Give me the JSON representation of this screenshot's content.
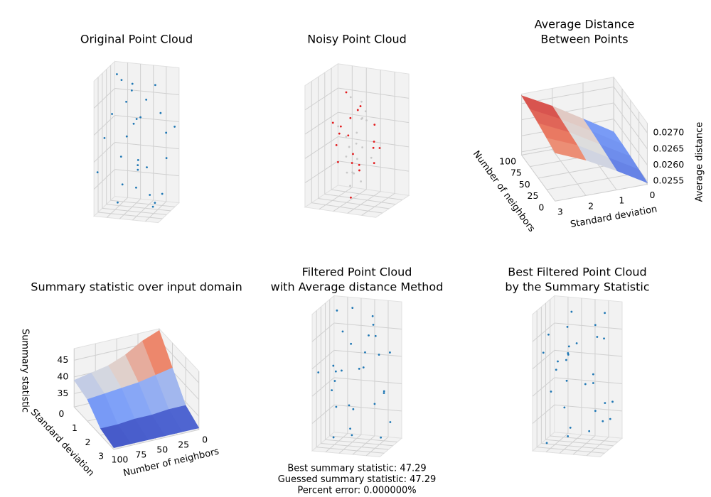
{
  "chart_data": [
    {
      "type": "scatter3d",
      "title": [
        "Original Point Cloud"
      ],
      "xlim": [
        0,
        1
      ],
      "ylim": [
        0,
        1
      ],
      "zlim": [
        0,
        1
      ],
      "series": [
        {
          "color": "#1f77b4",
          "x": [
            0.12,
            0.85,
            0.43,
            0.67,
            0.29,
            0.91,
            0.05,
            0.56,
            0.74,
            0.38,
            0.19,
            0.63,
            0.97,
            0.31,
            0.48,
            0.82,
            0.08,
            0.54,
            0.71,
            0.26,
            0.93,
            0.36,
            0.61,
            0.15,
            0.78,
            0.44,
            0.02,
            0.69,
            0.88,
            0.51
          ],
          "y": [
            0.73,
            0.21,
            0.58,
            0.04,
            0.92,
            0.47,
            0.35,
            0.81,
            0.66,
            0.13,
            0.55,
            0.29,
            0.88,
            0.41,
            0.07,
            0.95,
            0.62,
            0.18,
            0.49,
            0.77,
            0.33,
            0.99,
            0.24,
            0.86,
            0.52,
            0.69,
            0.11,
            0.38,
            0.75,
            0.45
          ],
          "z": [
            0.95,
            0.08,
            0.62,
            0.37,
            0.81,
            0.14,
            0.53,
            0.27,
            0.91,
            0.44,
            0.03,
            0.72,
            0.58,
            0.19,
            0.86,
            0.33,
            0.67,
            0.98,
            0.12,
            0.49,
            0.76,
            0.25,
            0.41,
            0.89,
            0.06,
            0.64,
            0.31,
            0.84,
            0.55,
            0.17
          ]
        }
      ]
    },
    {
      "type": "scatter3d",
      "title": [
        "Noisy Point Cloud"
      ],
      "xlim": [
        0,
        1
      ],
      "ylim": [
        0,
        1
      ],
      "zlim": [
        0,
        1
      ],
      "series": [
        {
          "color": "#c8c8c8",
          "x": [
            0.35,
            0.62,
            0.44,
            0.58,
            0.31,
            0.67,
            0.49,
            0.39,
            0.55,
            0.64,
            0.33,
            0.47,
            0.6,
            0.42,
            0.53,
            0.37,
            0.66,
            0.45,
            0.51,
            0.4
          ],
          "y": [
            0.52,
            0.38,
            0.61,
            0.45,
            0.34,
            0.57,
            0.66,
            0.41,
            0.3,
            0.49,
            0.63,
            0.36,
            0.55,
            0.68,
            0.43,
            0.59,
            0.32,
            0.47,
            0.64,
            0.39
          ],
          "z": [
            0.22,
            0.71,
            0.45,
            0.18,
            0.63,
            0.36,
            0.79,
            0.54,
            0.27,
            0.68,
            0.41,
            0.15,
            0.74,
            0.31,
            0.58,
            0.83,
            0.49,
            0.24,
            0.66,
            0.38
          ]
        },
        {
          "color": "#e31a1c",
          "x": [
            0.28,
            0.71,
            0.45,
            0.15,
            0.62,
            0.39,
            0.83,
            0.52,
            0.21,
            0.66,
            0.47,
            0.34,
            0.58,
            0.76,
            0.42,
            0.25,
            0.69,
            0.55,
            0.37,
            0.48
          ],
          "y": [
            0.44,
            0.57,
            0.12,
            0.63,
            0.35,
            0.81,
            0.48,
            0.26,
            0.55,
            0.69,
            0.38,
            0.52,
            0.18,
            0.46,
            0.74,
            0.31,
            0.59,
            0.42,
            0.66,
            0.28
          ],
          "z": [
            0.55,
            0.32,
            0.68,
            0.41,
            0.82,
            0.19,
            0.47,
            0.73,
            0.29,
            0.61,
            0.05,
            0.88,
            0.38,
            0.52,
            0.25,
            0.66,
            0.44,
            0.77,
            0.35,
            0.58
          ]
        }
      ]
    },
    {
      "type": "surface3d",
      "title": [
        "Average Distance",
        "Between Points"
      ],
      "colormap": "coolwarm",
      "xlabel": "Number of neighbors",
      "ylabel": "Standard deviation",
      "zlabel": "Average distance",
      "x": [
        0,
        25,
        50,
        75,
        100
      ],
      "y": [
        0,
        1,
        2,
        3
      ],
      "values": [
        [
          0.02545,
          0.0255,
          0.02555,
          0.02558,
          0.0256
        ],
        [
          0.026,
          0.02605,
          0.0261,
          0.02615,
          0.02618
        ],
        [
          0.0265,
          0.0266,
          0.02665,
          0.0267,
          0.02675
        ],
        [
          0.0269,
          0.027,
          0.0271,
          0.02718,
          0.02725
        ]
      ],
      "xlim": [
        0,
        100
      ],
      "ylim": [
        0,
        3
      ],
      "zlim": [
        0.0254,
        0.0273
      ],
      "xticks": [
        0,
        25,
        50,
        75,
        100
      ],
      "yticks": [
        0,
        1,
        2,
        3
      ],
      "zticks": [
        0.0255,
        {
          "value": 0.026,
          "label": "0.0260"
        },
        0.0265,
        {
          "value": 0.027,
          "label": "0.0270"
        }
      ]
    },
    {
      "type": "surface3d",
      "title": [
        "Summary statistic over input domain"
      ],
      "colormap": "coolwarm",
      "xlabel": "Number of neighbors",
      "ylabel": "Standard deviation",
      "zlabel": "Summary statistic",
      "x": [
        0,
        20,
        40,
        60,
        80,
        100
      ],
      "y": [
        0,
        1,
        2,
        3
      ],
      "values": [
        [
          48,
          46,
          43,
          41,
          40,
          39
        ],
        [
          41,
          40,
          39,
          38.5,
          38,
          37.5
        ],
        [
          34,
          34,
          33.5,
          33.5,
          33,
          33
        ],
        [
          31.5,
          31.5,
          31.5,
          31.5,
          31.5,
          31.5
        ]
      ],
      "xlim": [
        0,
        100
      ],
      "ylim": [
        0,
        3
      ],
      "zlim": [
        31,
        48.5
      ],
      "xticks": [
        0,
        25,
        50,
        75,
        100
      ],
      "yticks": [
        0,
        1,
        2,
        3
      ],
      "zticks": [
        35,
        40,
        45
      ]
    },
    {
      "type": "scatter3d",
      "title": [
        "Filtered Point Cloud",
        "with Average distance Method"
      ],
      "xlim": [
        0,
        1
      ],
      "ylim": [
        0,
        1
      ],
      "zlim": [
        0,
        1
      ],
      "annotations": [
        "Best summary statistic: 47.29",
        "Guessed summary statistic: 47.29",
        "Percent error: 0.000000%"
      ],
      "series": [
        {
          "color": "#1f77b4",
          "x": [
            0.95,
            0.08,
            0.62,
            0.37,
            0.81,
            0.14,
            0.53,
            0.27,
            0.91,
            0.44,
            0.03,
            0.72,
            0.58,
            0.19,
            0.86,
            0.33,
            0.67,
            0.98,
            0.12,
            0.49,
            0.76,
            0.25,
            0.41,
            0.89,
            0.06,
            0.64,
            0.31,
            0.84,
            0.55,
            0.17
          ],
          "y": [
            0.12,
            0.85,
            0.43,
            0.67,
            0.29,
            0.91,
            0.05,
            0.56,
            0.74,
            0.38,
            0.19,
            0.63,
            0.97,
            0.31,
            0.48,
            0.82,
            0.08,
            0.54,
            0.71,
            0.26,
            0.93,
            0.36,
            0.61,
            0.15,
            0.78,
            0.44,
            0.02,
            0.69,
            0.88,
            0.51
          ],
          "z": [
            0.73,
            0.21,
            0.58,
            0.04,
            0.92,
            0.47,
            0.35,
            0.81,
            0.66,
            0.13,
            0.55,
            0.29,
            0.88,
            0.41,
            0.07,
            0.95,
            0.62,
            0.18,
            0.49,
            0.77,
            0.33,
            0.99,
            0.24,
            0.86,
            0.52,
            0.69,
            0.11,
            0.38,
            0.75,
            0.45
          ]
        }
      ]
    },
    {
      "type": "scatter3d",
      "title": [
        "Best Filtered Point Cloud",
        "by the Summary Statistic"
      ],
      "xlim": [
        0,
        1
      ],
      "ylim": [
        0,
        1
      ],
      "zlim": [
        0,
        1
      ],
      "series": [
        {
          "color": "#1f77b4",
          "x": [
            0.73,
            0.21,
            0.58,
            0.04,
            0.92,
            0.47,
            0.35,
            0.81,
            0.66,
            0.13,
            0.55,
            0.29,
            0.88,
            0.41,
            0.07,
            0.95,
            0.62,
            0.18,
            0.49,
            0.77,
            0.33,
            0.99,
            0.24,
            0.86,
            0.52,
            0.69,
            0.11,
            0.38,
            0.75,
            0.45
          ],
          "y": [
            0.95,
            0.08,
            0.62,
            0.37,
            0.81,
            0.14,
            0.53,
            0.27,
            0.91,
            0.44,
            0.03,
            0.72,
            0.58,
            0.19,
            0.86,
            0.33,
            0.67,
            0.98,
            0.12,
            0.49,
            0.76,
            0.25,
            0.41,
            0.89,
            0.06,
            0.64,
            0.31,
            0.84,
            0.55,
            0.17
          ],
          "z": [
            0.12,
            0.85,
            0.43,
            0.67,
            0.29,
            0.91,
            0.05,
            0.56,
            0.74,
            0.38,
            0.19,
            0.63,
            0.97,
            0.31,
            0.48,
            0.82,
            0.08,
            0.54,
            0.71,
            0.26,
            0.93,
            0.36,
            0.61,
            0.15,
            0.78,
            0.44,
            0.02,
            0.69,
            0.88,
            0.51
          ]
        }
      ]
    }
  ]
}
